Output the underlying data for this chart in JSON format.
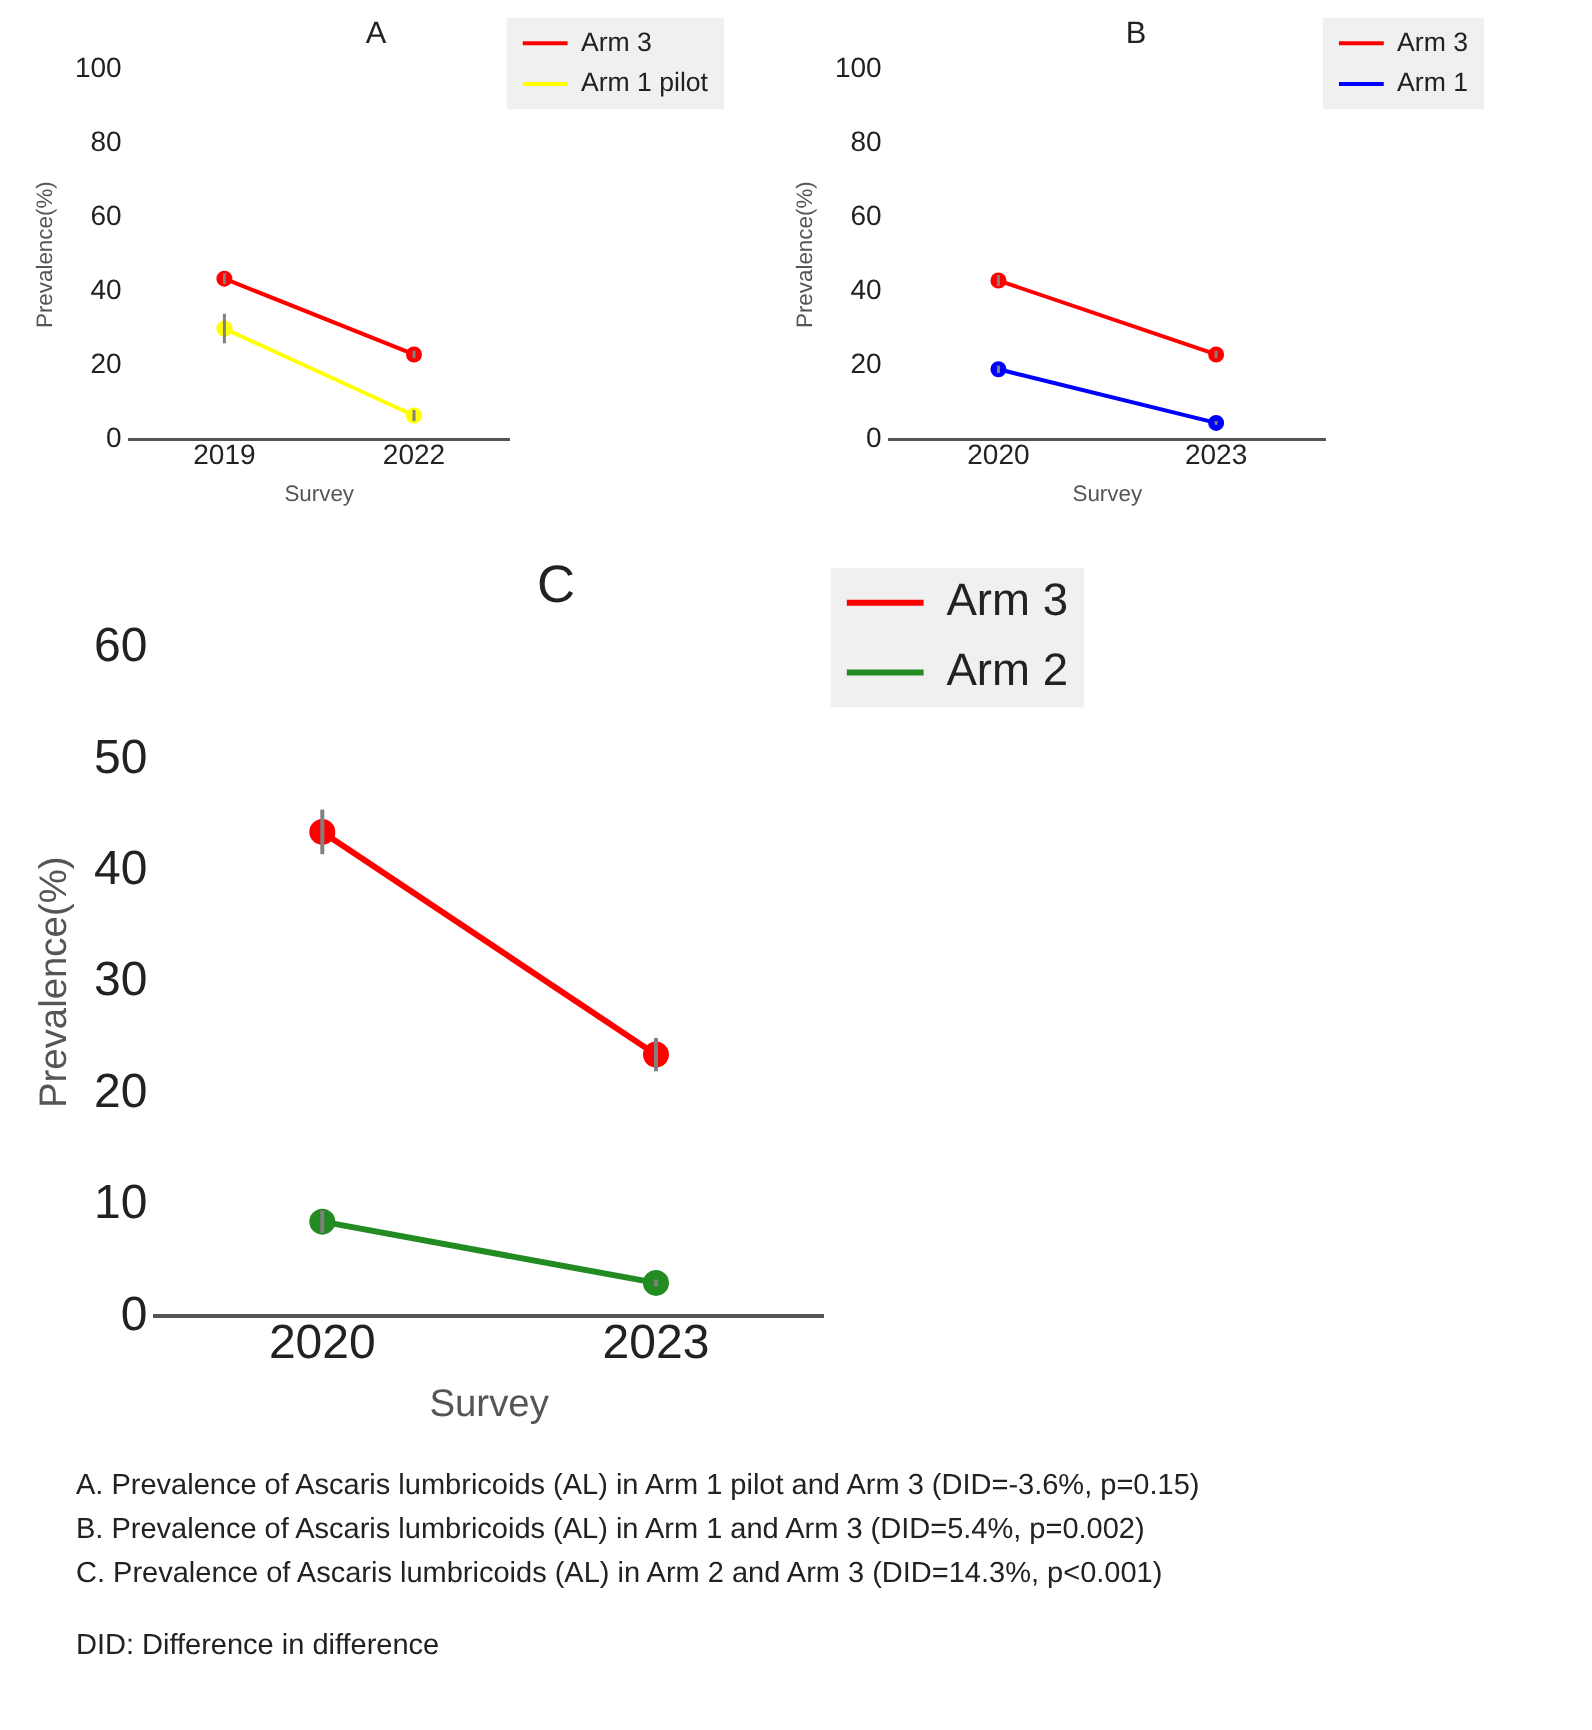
{
  "chart_data": [
    {
      "type": "line",
      "title": "A",
      "xlabel": "Survey",
      "ylabel": "Prevalence(%)",
      "categories": [
        "2019",
        "2022"
      ],
      "ylim": [
        0,
        100
      ],
      "yticks": [
        0,
        20,
        40,
        60,
        80,
        100
      ],
      "grid": false,
      "legend": "top right",
      "marker": "circle",
      "series": [
        {
          "name": "Arm 3",
          "color": "#ff0000",
          "values": [
            43.5,
            23
          ],
          "errors": [
            1.5,
            1
          ]
        },
        {
          "name": "Arm 1 pilot",
          "color": "#ffff00",
          "values": [
            30,
            6.5
          ],
          "errors": [
            4,
            1.5
          ]
        }
      ]
    },
    {
      "type": "line",
      "title": "B",
      "xlabel": "Survey",
      "ylabel": "Prevalence(%)",
      "categories": [
        "2020",
        "2023"
      ],
      "ylim": [
        0,
        100
      ],
      "yticks": [
        0,
        20,
        40,
        60,
        80,
        100
      ],
      "grid": false,
      "legend": "top right",
      "marker": "circle",
      "series": [
        {
          "name": "Arm 3",
          "color": "#ff0000",
          "values": [
            43,
            23
          ],
          "errors": [
            1.5,
            1
          ]
        },
        {
          "name": "Arm 1",
          "color": "#0000ff",
          "values": [
            19,
            4.5
          ],
          "errors": [
            1,
            0.5
          ]
        }
      ]
    },
    {
      "type": "line",
      "title": "C",
      "xlabel": "Survey",
      "ylabel": "Prevalence(%)",
      "categories": [
        "2020",
        "2023"
      ],
      "ylim": [
        0,
        60
      ],
      "yticks": [
        0,
        10,
        20,
        30,
        40,
        50,
        60
      ],
      "grid": false,
      "legend": "top right",
      "marker": "circle",
      "series": [
        {
          "name": "Arm 3",
          "color": "#ff0000",
          "values": [
            43.5,
            23.5
          ],
          "errors": [
            2,
            1.5
          ]
        },
        {
          "name": "Arm 2",
          "color": "#228b22",
          "values": [
            8.5,
            3
          ],
          "errors": [
            1,
            0.3
          ]
        }
      ],
      "annotations": [
        "A.   Prevalence of Ascaris lumbricoids (AL) in Arm 1 pilot and Arm 3 (DID=-3.6%, p=0.15)",
        "B.   Prevalence of Ascaris lumbricoids (AL) in Arm 1 and Arm 3 (DID=5.4%, p=0.002)",
        "C.   Prevalence of Ascaris lumbricoids (AL) in Arm 2 and Arm 3 (DID=14.3%, p<0.001)",
        "DID: Difference in difference"
      ]
    }
  ]
}
